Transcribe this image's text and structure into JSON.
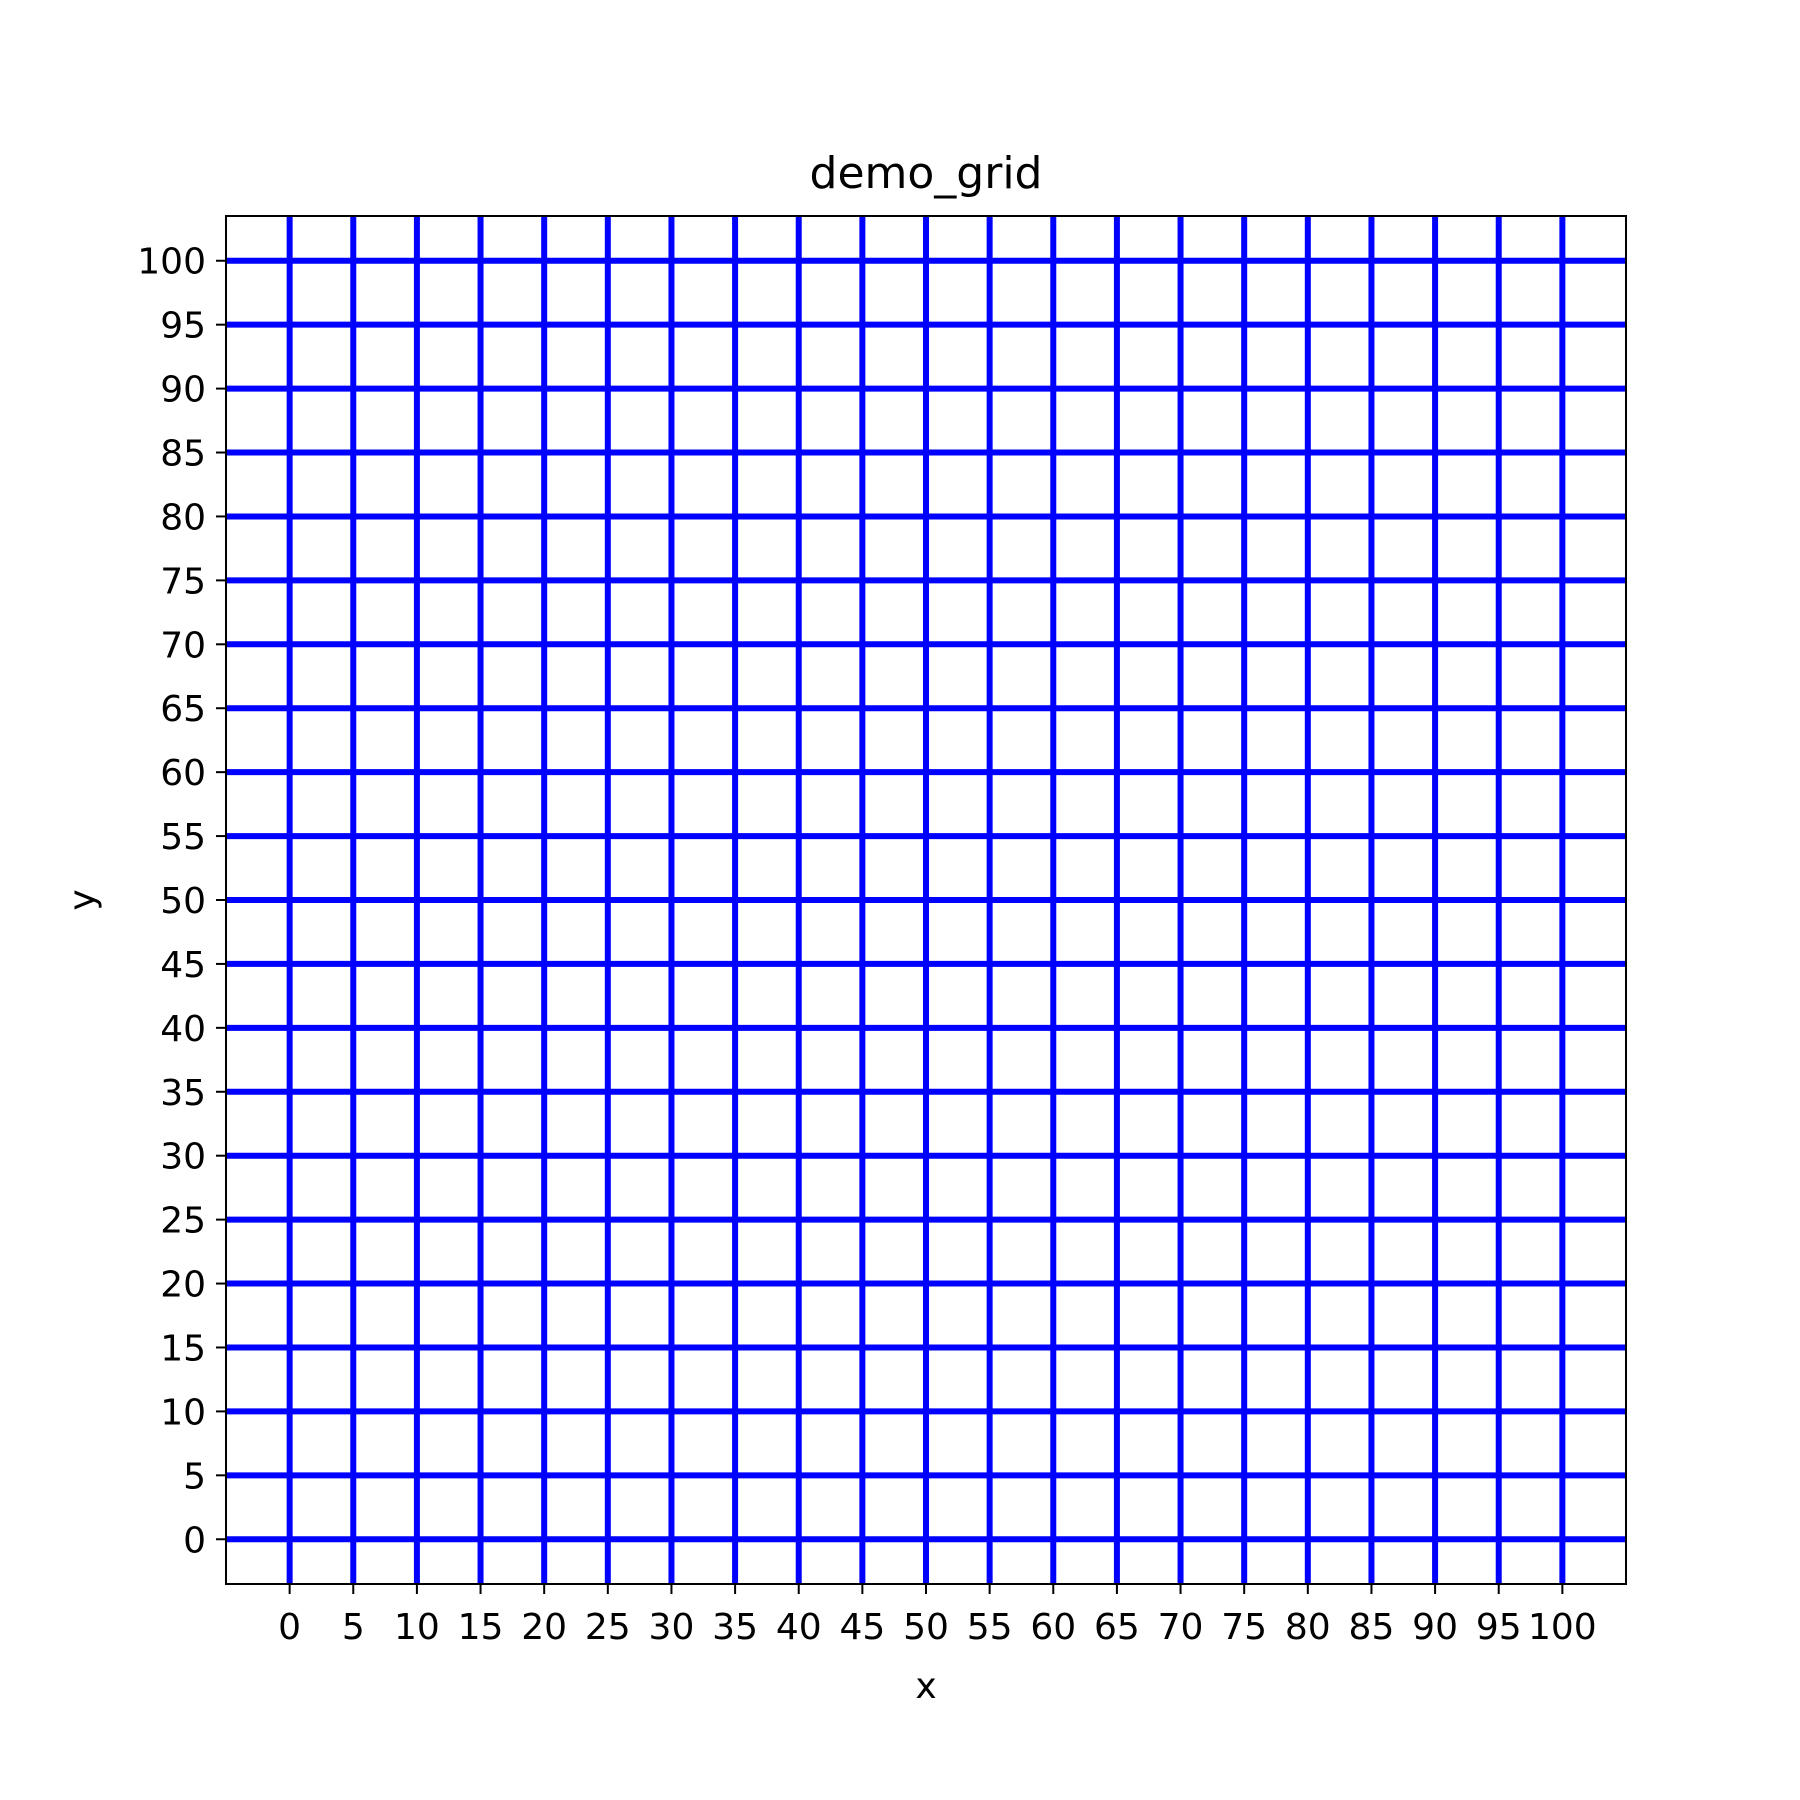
{
  "chart_data": {
    "type": "line",
    "title": "demo_grid",
    "xlabel": "x",
    "ylabel": "y",
    "xlim": [
      -5,
      105
    ],
    "ylim": [
      -3.5,
      103.5
    ],
    "xticks": [
      0,
      5,
      10,
      15,
      20,
      25,
      30,
      35,
      40,
      45,
      50,
      55,
      60,
      65,
      70,
      75,
      80,
      85,
      90,
      95,
      100
    ],
    "yticks": [
      0,
      5,
      10,
      15,
      20,
      25,
      30,
      35,
      40,
      45,
      50,
      55,
      60,
      65,
      70,
      75,
      80,
      85,
      90,
      95,
      100
    ],
    "xtick_labels": [
      "0",
      "5",
      "10",
      "15",
      "20",
      "25",
      "30",
      "35",
      "40",
      "45",
      "50",
      "55",
      "60",
      "65",
      "70",
      "75",
      "80",
      "85",
      "90",
      "95",
      "100"
    ],
    "ytick_labels": [
      "0",
      "5",
      "10",
      "15",
      "20",
      "25",
      "30",
      "35",
      "40",
      "45",
      "50",
      "55",
      "60",
      "65",
      "70",
      "75",
      "80",
      "85",
      "90",
      "95",
      "100"
    ],
    "vertical_lines_x": [
      0,
      5,
      10,
      15,
      20,
      25,
      30,
      35,
      40,
      45,
      50,
      55,
      60,
      65,
      70,
      75,
      80,
      85,
      90,
      95,
      100
    ],
    "horizontal_lines_y": [
      0,
      5,
      10,
      15,
      20,
      25,
      30,
      35,
      40,
      45,
      50,
      55,
      60,
      65,
      70,
      75,
      80,
      85,
      90,
      95,
      100
    ],
    "line_color": "#0000ff",
    "grid": false,
    "legend": "none"
  }
}
